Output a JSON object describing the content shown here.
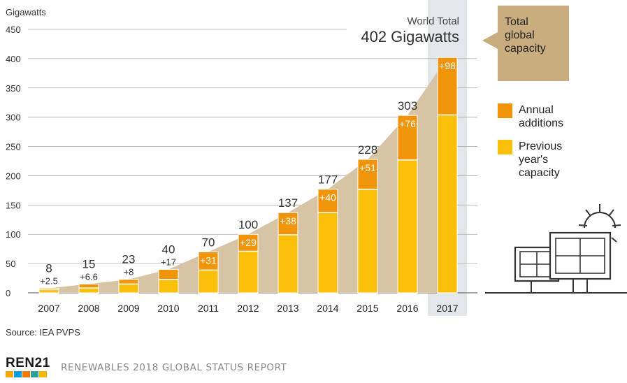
{
  "chart_data": {
    "type": "bar",
    "stacked": true,
    "ylabel": "Gigawatts",
    "ylim": [
      0,
      450
    ],
    "yticks": [
      0,
      50,
      100,
      150,
      200,
      250,
      300,
      350,
      400,
      450
    ],
    "grid": true,
    "categories": [
      "2007",
      "2008",
      "2009",
      "2010",
      "2011",
      "2012",
      "2013",
      "2014",
      "2015",
      "2016",
      "2017"
    ],
    "series": [
      {
        "name": "Previous year's capacity",
        "values": [
          5.5,
          8.4,
          15,
          23,
          39,
          71,
          99,
          137,
          177,
          227,
          304
        ]
      },
      {
        "name": "Annual additions",
        "values": [
          2.5,
          6.6,
          8,
          17,
          31,
          29,
          38,
          40,
          51,
          76,
          98
        ]
      }
    ],
    "totals": [
      8,
      15,
      23,
      40,
      70,
      100,
      137,
      177,
      228,
      303,
      402
    ],
    "total_labels": [
      "8",
      "15",
      "23",
      "40",
      "70",
      "100",
      "137",
      "177",
      "228",
      "303",
      ""
    ],
    "addition_labels": [
      "+2.5",
      "+6.6",
      "+8",
      "+17",
      "+31",
      "+29",
      "+38",
      "+40",
      "+51",
      "+76",
      "+98"
    ],
    "area_series": {
      "name": "Total global capacity",
      "values": [
        8,
        15,
        23,
        40,
        70,
        100,
        137,
        177,
        228,
        303,
        402
      ]
    },
    "highlight_category": "2017",
    "annotation": {
      "line1": "World Total",
      "line2": "402 Gigawatts"
    },
    "legend": {
      "placement": "right",
      "items": [
        {
          "label_lines": [
            "Total",
            "global",
            "capacity"
          ],
          "color": "#c9ad7f"
        },
        {
          "label_lines": [
            "Annual",
            "additions"
          ],
          "color": "#f0950a"
        },
        {
          "label_lines": [
            "Previous",
            "year's",
            "capacity"
          ],
          "color": "#fcc00a"
        }
      ]
    },
    "colors": {
      "previous": "#fcc00a",
      "additions": "#f0950a",
      "area": "#d6c4a4",
      "highlight_band": "#e3e7eb",
      "grid": "#aaaaaa",
      "legend_box": "#c9ad7f",
      "panel_stroke": "#333333"
    }
  },
  "footer": {
    "source": "Source: IEA PVPS",
    "brand_name": "REN",
    "brand_number": "21",
    "report_title": "RENEWABLES 2018 GLOBAL STATUS REPORT",
    "brand_colors": [
      "#f7a600",
      "#009fe3",
      "#f07c00",
      "#2aa198",
      "#f5b800"
    ]
  }
}
